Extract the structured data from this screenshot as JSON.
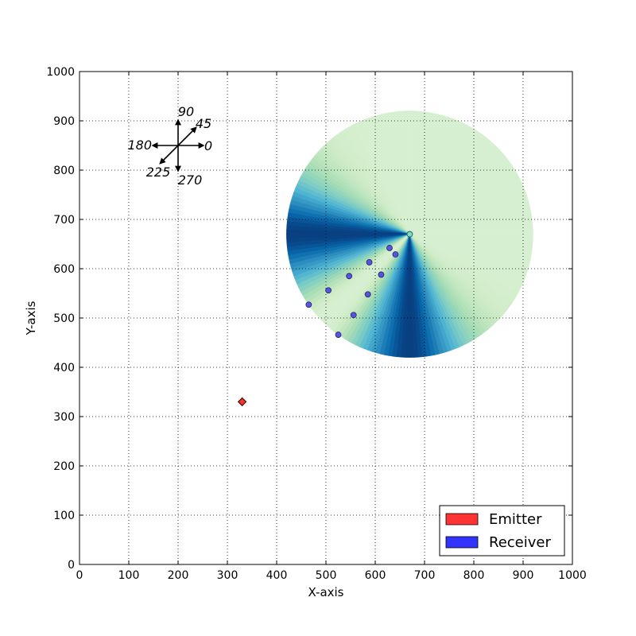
{
  "chart_data": {
    "type": "scatter",
    "title": "",
    "xlabel": "X-axis",
    "ylabel": "Y-axis",
    "xlim": [
      0,
      1000
    ],
    "ylim": [
      0,
      1000
    ],
    "xticks": [
      "0",
      "100",
      "200",
      "300",
      "400",
      "500",
      "600",
      "700",
      "800",
      "900",
      "1000"
    ],
    "yticks": [
      "0",
      "100",
      "200",
      "300",
      "400",
      "500",
      "600",
      "700",
      "800",
      "900",
      "1000"
    ],
    "grid": true,
    "legend": {
      "placement": "bottom-right",
      "entries": [
        {
          "label": "Emitter",
          "color": "#ff3333"
        },
        {
          "label": "Receiver",
          "color": "#3333ff"
        }
      ]
    },
    "emitter": {
      "x": 330,
      "y": 330,
      "marker": "diamond",
      "color": "#ee3333"
    },
    "receivers": [
      {
        "x": 465,
        "y": 527
      },
      {
        "x": 505,
        "y": 556
      },
      {
        "x": 525,
        "y": 466
      },
      {
        "x": 547,
        "y": 585
      },
      {
        "x": 556,
        "y": 506
      },
      {
        "x": 585,
        "y": 548
      },
      {
        "x": 588,
        "y": 613
      },
      {
        "x": 612,
        "y": 588
      },
      {
        "x": 629,
        "y": 642
      },
      {
        "x": 641,
        "y": 629
      }
    ],
    "receiver_color": "#5555dd",
    "radiation_pattern": {
      "center": {
        "x": 670,
        "y": 670
      },
      "radius": 250,
      "dark_lobes_deg": [
        180,
        270
      ],
      "null_direction_deg": 225,
      "colormap": "GnBu"
    },
    "compass": {
      "center": {
        "x": 200,
        "y": 850
      },
      "labels": [
        {
          "angle": 90,
          "text": "90"
        },
        {
          "angle": 45,
          "text": "45"
        },
        {
          "angle": 0,
          "text": "0"
        },
        {
          "angle": 180,
          "text": "180"
        },
        {
          "angle": 225,
          "text": "225"
        },
        {
          "angle": 270,
          "text": "270"
        }
      ]
    }
  }
}
